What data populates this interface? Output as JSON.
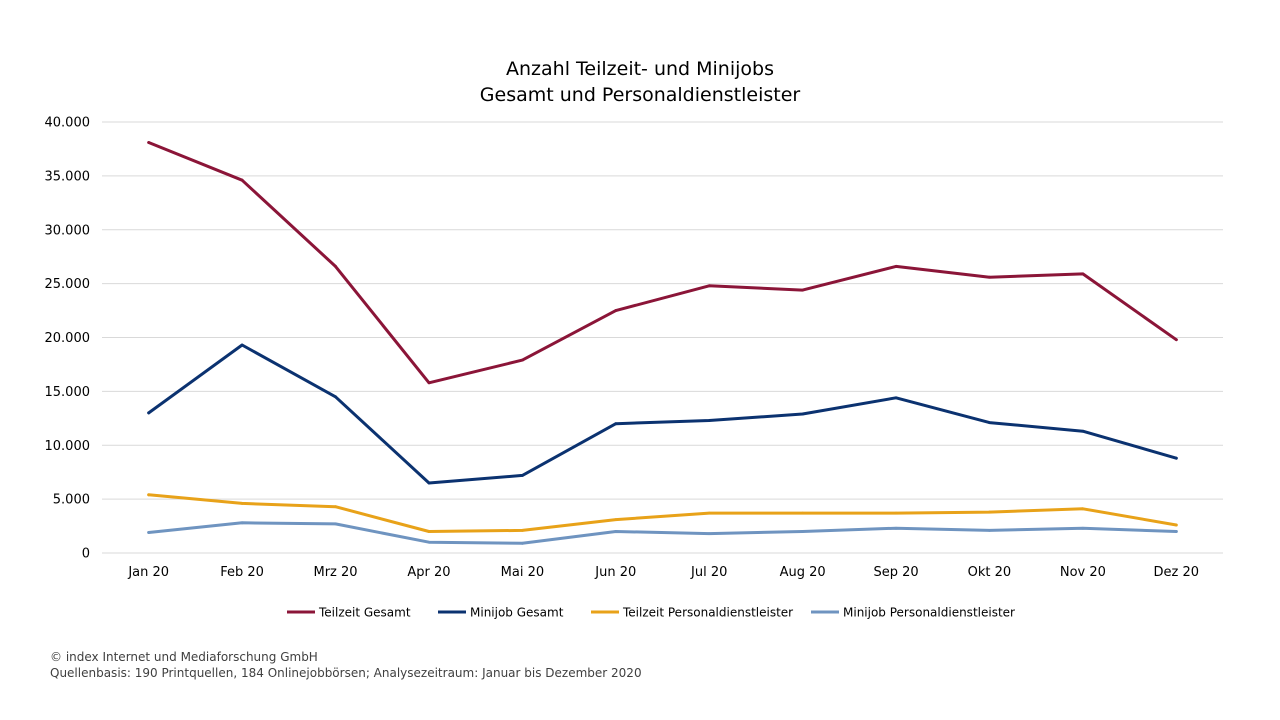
{
  "chart_data": {
    "type": "line",
    "title": "Anzahl Teilzeit- und Minijobs",
    "subtitle": "Gesamt und Personaldienstleister",
    "categories": [
      "Jan 20",
      "Feb 20",
      "Mrz 20",
      "Apr 20",
      "Mai 20",
      "Jun 20",
      "Jul 20",
      "Aug 20",
      "Sep 20",
      "Okt 20",
      "Nov 20",
      "Dez 20"
    ],
    "ylim": [
      0,
      40000
    ],
    "yticks": [
      0,
      5000,
      10000,
      15000,
      20000,
      25000,
      30000,
      35000,
      40000
    ],
    "ytick_labels": [
      "0",
      "5.000",
      "10.000",
      "15.000",
      "20.000",
      "25.000",
      "30.000",
      "35.000",
      "40.000"
    ],
    "grid": true,
    "legend_position": "bottom",
    "series": [
      {
        "name": "Teilzeit Gesamt",
        "color": "#8B1538",
        "values": [
          38100,
          34600,
          26600,
          15800,
          17900,
          22500,
          24800,
          24400,
          26600,
          25600,
          25900,
          19800
        ]
      },
      {
        "name": "Minijob Gesamt",
        "color": "#0B3270",
        "values": [
          13000,
          19300,
          14500,
          6500,
          7200,
          12000,
          12300,
          12900,
          14400,
          12100,
          11300,
          8800
        ]
      },
      {
        "name": "Teilzeit Personaldienstleister",
        "color": "#E8A219",
        "values": [
          5400,
          4600,
          4300,
          2000,
          2100,
          3100,
          3700,
          3700,
          3700,
          3800,
          4100,
          2600
        ]
      },
      {
        "name": "Minijob Personaldienstleister",
        "color": "#6F94C0",
        "values": [
          1900,
          2800,
          2700,
          1000,
          900,
          2000,
          1800,
          2000,
          2300,
          2100,
          2300,
          2000
        ]
      }
    ]
  },
  "footer": {
    "copyright": "© index Internet und Mediaforschung GmbH",
    "source": "Quellenbasis: 190 Printquellen, 184 Onlinejobbörsen; Analysezeitraum: Januar bis Dezember 2020"
  }
}
